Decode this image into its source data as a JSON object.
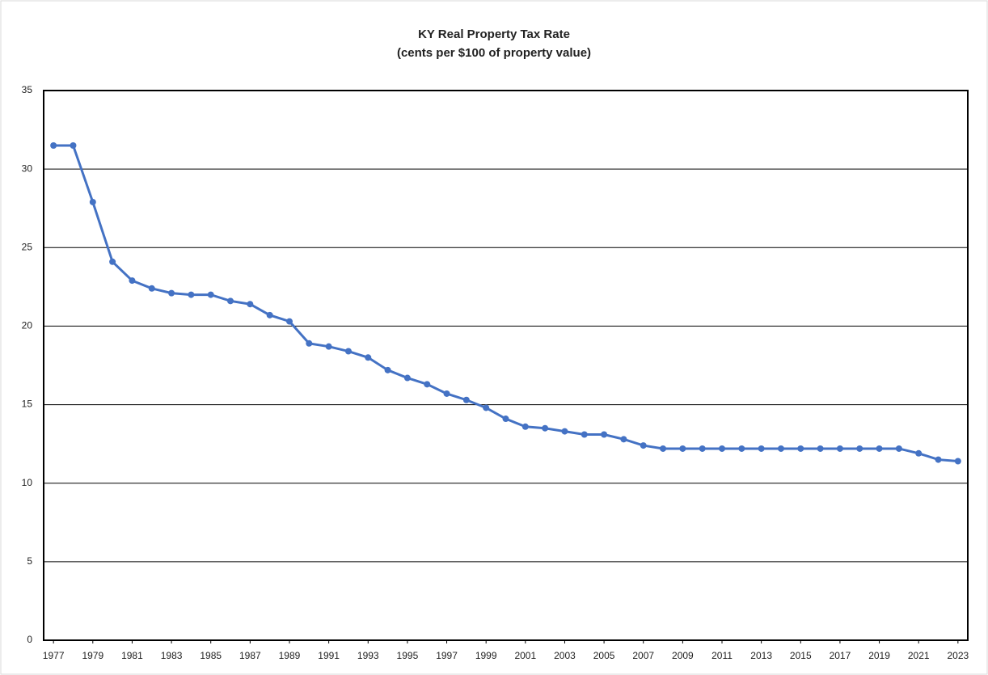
{
  "chart_data": {
    "type": "line",
    "title": "KY Real Property Tax Rate",
    "subtitle": "(cents per $100 of property value)",
    "x": [
      1977,
      1978,
      1979,
      1980,
      1981,
      1982,
      1983,
      1984,
      1985,
      1986,
      1987,
      1988,
      1989,
      1990,
      1991,
      1992,
      1993,
      1994,
      1995,
      1996,
      1997,
      1998,
      1999,
      2000,
      2001,
      2002,
      2003,
      2004,
      2005,
      2006,
      2007,
      2008,
      2009,
      2010,
      2011,
      2012,
      2013,
      2014,
      2015,
      2016,
      2017,
      2018,
      2019,
      2020,
      2021,
      2022,
      2023
    ],
    "series": [
      {
        "color": "#4472c4",
        "values": [
          31.5,
          31.5,
          27.9,
          24.1,
          22.9,
          22.4,
          22.1,
          22.0,
          22.0,
          21.6,
          21.4,
          20.7,
          20.3,
          18.9,
          18.7,
          18.4,
          18.0,
          17.2,
          16.7,
          16.3,
          15.7,
          15.3,
          14.8,
          14.1,
          13.6,
          13.5,
          13.3,
          13.1,
          13.1,
          12.8,
          12.4,
          12.2,
          12.2,
          12.2,
          12.2,
          12.2,
          12.2,
          12.2,
          12.2,
          12.2,
          12.2,
          12.2,
          12.2,
          12.2,
          11.9,
          11.5,
          11.4
        ]
      }
    ],
    "xlim": [
      1976.5,
      2023.5
    ],
    "xticks": [
      1977,
      1979,
      1981,
      1983,
      1985,
      1987,
      1989,
      1991,
      1993,
      1995,
      1997,
      1999,
      2001,
      2003,
      2005,
      2007,
      2009,
      2011,
      2013,
      2015,
      2017,
      2019,
      2021,
      2023
    ],
    "ylim": [
      0,
      35
    ],
    "yticks": [
      0,
      5,
      10,
      15,
      20,
      25,
      30,
      35
    ],
    "grid": true
  }
}
